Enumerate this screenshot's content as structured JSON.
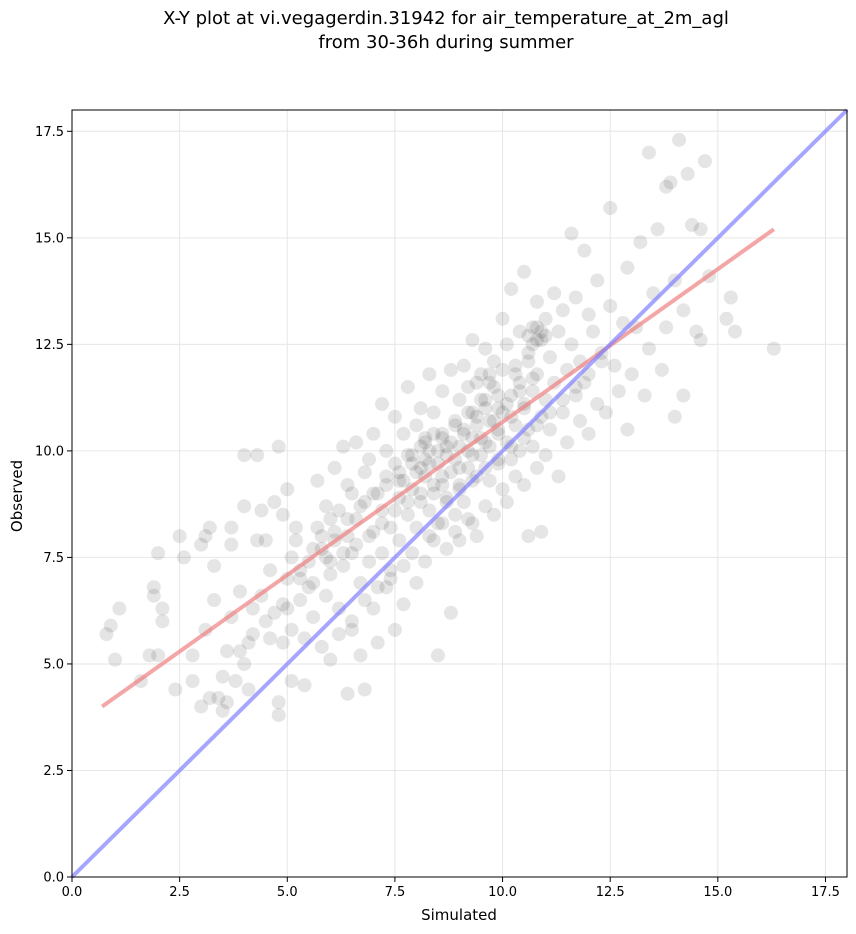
{
  "chart_data": {
    "type": "scatter",
    "title_lines": [
      "X-Y plot at vi.vegagerdin.31942 for air_temperature_at_2m_agl",
      "from 30-36h during summer"
    ],
    "xlabel": "Simulated",
    "ylabel": "Observed",
    "xlim": [
      0,
      18
    ],
    "ylim": [
      0,
      18
    ],
    "xticks": [
      "0.0",
      "2.5",
      "5.0",
      "7.5",
      "10.0",
      "12.5",
      "15.0",
      "17.5"
    ],
    "yticks": [
      "0.0",
      "2.5",
      "5.0",
      "7.5",
      "10.0",
      "12.5",
      "15.0",
      "17.5"
    ],
    "grid": true,
    "point_color": "#000000",
    "point_alpha": 0.1,
    "regression_line": {
      "color": "#f08080",
      "x": [
        0.7,
        16.3
      ],
      "y": [
        4.0,
        15.2
      ]
    },
    "identity_line": {
      "color": "#8080ff",
      "x": [
        0,
        18
      ],
      "y": [
        0,
        18
      ]
    },
    "points": [
      [
        0.8,
        5.7
      ],
      [
        0.9,
        5.9
      ],
      [
        1.0,
        5.1
      ],
      [
        1.1,
        6.3
      ],
      [
        1.6,
        4.6
      ],
      [
        1.8,
        5.2
      ],
      [
        1.9,
        6.8
      ],
      [
        1.9,
        6.6
      ],
      [
        2.0,
        7.6
      ],
      [
        2.1,
        6.3
      ],
      [
        2.1,
        6.0
      ],
      [
        2.0,
        5.2
      ],
      [
        2.4,
        4.4
      ],
      [
        2.5,
        8.0
      ],
      [
        2.6,
        7.5
      ],
      [
        2.8,
        4.6
      ],
      [
        2.8,
        5.2
      ],
      [
        3.0,
        4.0
      ],
      [
        3.0,
        7.8
      ],
      [
        3.1,
        8.0
      ],
      [
        3.1,
        5.8
      ],
      [
        3.2,
        8.2
      ],
      [
        3.2,
        4.2
      ],
      [
        3.3,
        7.3
      ],
      [
        3.3,
        6.5
      ],
      [
        3.4,
        4.2
      ],
      [
        3.5,
        3.9
      ],
      [
        3.6,
        4.1
      ],
      [
        3.6,
        5.3
      ],
      [
        3.7,
        6.1
      ],
      [
        3.7,
        8.2
      ],
      [
        3.7,
        7.8
      ],
      [
        3.8,
        4.6
      ],
      [
        3.9,
        6.7
      ],
      [
        4.0,
        9.9
      ],
      [
        4.0,
        8.7
      ],
      [
        4.0,
        5.0
      ],
      [
        4.1,
        5.5
      ],
      [
        4.1,
        4.4
      ],
      [
        4.2,
        6.3
      ],
      [
        4.3,
        9.9
      ],
      [
        4.3,
        7.9
      ],
      [
        4.4,
        6.6
      ],
      [
        4.4,
        8.6
      ],
      [
        4.5,
        7.9
      ],
      [
        4.6,
        5.6
      ],
      [
        4.6,
        7.2
      ],
      [
        4.7,
        6.2
      ],
      [
        4.7,
        8.8
      ],
      [
        4.8,
        4.1
      ],
      [
        4.8,
        3.8
      ],
      [
        4.8,
        10.1
      ],
      [
        4.9,
        5.5
      ],
      [
        4.9,
        8.5
      ],
      [
        5.0,
        9.1
      ],
      [
        5.0,
        7.0
      ],
      [
        5.0,
        6.3
      ],
      [
        5.1,
        4.6
      ],
      [
        5.1,
        5.8
      ],
      [
        5.1,
        7.5
      ],
      [
        5.2,
        8.2
      ],
      [
        5.2,
        7.9
      ],
      [
        5.3,
        6.5
      ],
      [
        5.3,
        7.2
      ],
      [
        5.4,
        5.6
      ],
      [
        5.4,
        4.5
      ],
      [
        5.5,
        7.4
      ],
      [
        5.5,
        6.8
      ],
      [
        5.6,
        6.1
      ],
      [
        5.6,
        7.7
      ],
      [
        5.7,
        8.2
      ],
      [
        5.7,
        9.3
      ],
      [
        5.8,
        5.4
      ],
      [
        5.8,
        8.0
      ],
      [
        5.9,
        7.5
      ],
      [
        5.9,
        8.7
      ],
      [
        6.0,
        7.1
      ],
      [
        6.0,
        5.1
      ],
      [
        6.0,
        8.4
      ],
      [
        6.1,
        9.6
      ],
      [
        6.1,
        7.9
      ],
      [
        6.2,
        6.3
      ],
      [
        6.2,
        8.6
      ],
      [
        6.3,
        10.1
      ],
      [
        6.3,
        7.3
      ],
      [
        6.4,
        9.2
      ],
      [
        6.4,
        4.3
      ],
      [
        6.4,
        8.0
      ],
      [
        6.5,
        5.8
      ],
      [
        6.5,
        7.6
      ],
      [
        6.5,
        9.0
      ],
      [
        6.6,
        10.2
      ],
      [
        6.6,
        8.4
      ],
      [
        6.7,
        6.9
      ],
      [
        6.7,
        5.2
      ],
      [
        6.8,
        8.8
      ],
      [
        6.8,
        9.5
      ],
      [
        6.8,
        4.4
      ],
      [
        6.9,
        7.4
      ],
      [
        6.9,
        9.8
      ],
      [
        7.0,
        8.1
      ],
      [
        7.0,
        6.3
      ],
      [
        7.0,
        10.4
      ],
      [
        7.1,
        5.5
      ],
      [
        7.1,
        9.0
      ],
      [
        7.2,
        7.6
      ],
      [
        7.2,
        11.1
      ],
      [
        7.2,
        8.6
      ],
      [
        7.3,
        9.4
      ],
      [
        7.3,
        6.8
      ],
      [
        7.3,
        10.0
      ],
      [
        7.4,
        8.2
      ],
      [
        7.4,
        7.2
      ],
      [
        7.5,
        9.7
      ],
      [
        7.5,
        10.8
      ],
      [
        7.5,
        5.8
      ],
      [
        7.6,
        8.9
      ],
      [
        7.6,
        7.9
      ],
      [
        7.6,
        9.3
      ],
      [
        7.7,
        10.4
      ],
      [
        7.7,
        6.4
      ],
      [
        7.8,
        8.5
      ],
      [
        7.8,
        11.5
      ],
      [
        7.8,
        9.9
      ],
      [
        7.9,
        7.6
      ],
      [
        7.9,
        9.1
      ],
      [
        8.0,
        10.6
      ],
      [
        8.0,
        8.2
      ],
      [
        8.0,
        6.9
      ],
      [
        8.1,
        9.6
      ],
      [
        8.1,
        11.0
      ],
      [
        8.1,
        8.8
      ],
      [
        8.2,
        10.2
      ],
      [
        8.2,
        7.4
      ],
      [
        8.2,
        9.4
      ],
      [
        8.3,
        11.8
      ],
      [
        8.3,
        8.6
      ],
      [
        8.3,
        10.0
      ],
      [
        8.4,
        9.0
      ],
      [
        8.4,
        7.9
      ],
      [
        8.4,
        10.9
      ],
      [
        8.5,
        9.7
      ],
      [
        8.5,
        8.3
      ],
      [
        8.5,
        5.2
      ],
      [
        8.6,
        10.4
      ],
      [
        8.6,
        11.4
      ],
      [
        8.6,
        9.2
      ],
      [
        8.7,
        7.7
      ],
      [
        8.7,
        10.1
      ],
      [
        8.7,
        8.8
      ],
      [
        8.8,
        9.5
      ],
      [
        8.8,
        11.9
      ],
      [
        8.8,
        6.2
      ],
      [
        8.9,
        10.7
      ],
      [
        8.9,
        8.5
      ],
      [
        8.9,
        9.8
      ],
      [
        9.0,
        11.2
      ],
      [
        9.0,
        9.1
      ],
      [
        9.0,
        7.9
      ],
      [
        9.1,
        10.4
      ],
      [
        9.1,
        12.0
      ],
      [
        9.1,
        8.8
      ],
      [
        9.2,
        9.6
      ],
      [
        9.2,
        11.5
      ],
      [
        9.2,
        10.0
      ],
      [
        9.3,
        8.3
      ],
      [
        9.3,
        10.9
      ],
      [
        9.3,
        12.6
      ],
      [
        9.4,
        9.4
      ],
      [
        9.4,
        10.6
      ],
      [
        9.4,
        8.0
      ],
      [
        9.5,
        11.8
      ],
      [
        9.5,
        9.9
      ],
      [
        9.5,
        10.3
      ],
      [
        9.6,
        8.7
      ],
      [
        9.6,
        11.2
      ],
      [
        9.6,
        12.4
      ],
      [
        9.7,
        10.1
      ],
      [
        9.7,
        9.3
      ],
      [
        9.7,
        11.6
      ],
      [
        9.8,
        10.7
      ],
      [
        9.8,
        8.5
      ],
      [
        9.8,
        12.1
      ],
      [
        9.9,
        9.7
      ],
      [
        9.9,
        11.0
      ],
      [
        9.9,
        10.4
      ],
      [
        10.0,
        13.1
      ],
      [
        10.0,
        9.1
      ],
      [
        10.0,
        11.9
      ],
      [
        10.1,
        10.2
      ],
      [
        10.1,
        8.8
      ],
      [
        10.1,
        12.5
      ],
      [
        10.2,
        11.3
      ],
      [
        10.2,
        9.8
      ],
      [
        10.2,
        13.8
      ],
      [
        10.3,
        10.6
      ],
      [
        10.3,
        12.0
      ],
      [
        10.3,
        9.4
      ],
      [
        10.4,
        11.6
      ],
      [
        10.4,
        10.0
      ],
      [
        10.4,
        12.8
      ],
      [
        10.5,
        11.0
      ],
      [
        10.5,
        14.2
      ],
      [
        10.5,
        9.2
      ],
      [
        10.6,
        12.3
      ],
      [
        10.6,
        10.5
      ],
      [
        10.6,
        8.0
      ],
      [
        10.7,
        11.4
      ],
      [
        10.7,
        12.9
      ],
      [
        10.7,
        10.1
      ],
      [
        10.8,
        13.5
      ],
      [
        10.8,
        11.8
      ],
      [
        10.8,
        9.6
      ],
      [
        10.9,
        12.6
      ],
      [
        10.9,
        10.8
      ],
      [
        10.9,
        8.1
      ],
      [
        11.0,
        11.2
      ],
      [
        11.0,
        13.1
      ],
      [
        11.0,
        9.9
      ],
      [
        11.1,
        12.2
      ],
      [
        11.1,
        10.5
      ],
      [
        11.2,
        13.7
      ],
      [
        11.2,
        11.6
      ],
      [
        11.3,
        9.4
      ],
      [
        11.3,
        12.8
      ],
      [
        11.4,
        10.9
      ],
      [
        11.4,
        13.3
      ],
      [
        11.5,
        11.9
      ],
      [
        11.5,
        10.2
      ],
      [
        11.6,
        12.5
      ],
      [
        11.6,
        15.1
      ],
      [
        11.7,
        11.3
      ],
      [
        11.7,
        13.6
      ],
      [
        11.8,
        10.7
      ],
      [
        11.8,
        12.1
      ],
      [
        11.9,
        14.7
      ],
      [
        11.9,
        11.6
      ],
      [
        12.0,
        13.2
      ],
      [
        12.0,
        10.4
      ],
      [
        12.1,
        12.8
      ],
      [
        12.2,
        11.1
      ],
      [
        12.2,
        14.0
      ],
      [
        12.3,
        12.3
      ],
      [
        12.4,
        10.9
      ],
      [
        12.5,
        13.4
      ],
      [
        12.5,
        15.7
      ],
      [
        12.6,
        12.0
      ],
      [
        12.7,
        11.4
      ],
      [
        12.8,
        13.0
      ],
      [
        12.9,
        14.3
      ],
      [
        12.9,
        10.5
      ],
      [
        13.0,
        11.8
      ],
      [
        13.1,
        12.9
      ],
      [
        13.2,
        14.9
      ],
      [
        13.3,
        11.3
      ],
      [
        13.4,
        12.4
      ],
      [
        13.4,
        17.0
      ],
      [
        13.5,
        13.7
      ],
      [
        13.6,
        15.2
      ],
      [
        13.7,
        11.9
      ],
      [
        13.8,
        16.2
      ],
      [
        13.8,
        12.9
      ],
      [
        13.9,
        16.3
      ],
      [
        14.0,
        10.8
      ],
      [
        14.0,
        14.0
      ],
      [
        14.1,
        17.3
      ],
      [
        14.2,
        13.3
      ],
      [
        14.2,
        11.3
      ],
      [
        14.3,
        16.5
      ],
      [
        14.4,
        15.3
      ],
      [
        14.5,
        12.8
      ],
      [
        14.6,
        15.2
      ],
      [
        14.6,
        12.6
      ],
      [
        14.7,
        16.8
      ],
      [
        14.8,
        14.1
      ],
      [
        15.2,
        13.1
      ],
      [
        15.3,
        13.6
      ],
      [
        15.4,
        12.8
      ],
      [
        16.3,
        12.4
      ],
      [
        8.2,
        9.8
      ],
      [
        8.5,
        10.0
      ],
      [
        8.8,
        10.2
      ],
      [
        9.1,
        10.5
      ],
      [
        9.4,
        10.8
      ],
      [
        9.6,
        11.0
      ],
      [
        9.9,
        11.3
      ],
      [
        8.0,
        9.5
      ],
      [
        8.3,
        9.7
      ],
      [
        8.6,
        10.3
      ],
      [
        8.9,
        10.6
      ],
      [
        9.2,
        10.9
      ],
      [
        9.5,
        11.2
      ],
      [
        9.8,
        11.5
      ],
      [
        10.1,
        11.1
      ],
      [
        10.4,
        11.4
      ],
      [
        10.7,
        11.7
      ],
      [
        7.7,
        9.3
      ],
      [
        8.1,
        10.1
      ],
      [
        8.4,
        10.4
      ],
      [
        8.7,
        9.9
      ],
      [
        9.0,
        10.1
      ],
      [
        9.3,
        10.3
      ],
      [
        9.7,
        10.7
      ],
      [
        10.0,
        10.9
      ],
      [
        10.3,
        11.8
      ],
      [
        10.6,
        12.1
      ],
      [
        7.9,
        9.9
      ],
      [
        8.2,
        10.3
      ],
      [
        8.6,
        9.4
      ],
      [
        9.0,
        9.6
      ],
      [
        9.3,
        9.9
      ],
      [
        9.6,
        10.2
      ],
      [
        9.9,
        10.5
      ],
      [
        10.2,
        10.8
      ],
      [
        10.5,
        11.1
      ],
      [
        10.8,
        12.6
      ],
      [
        10.9,
        12.8
      ],
      [
        11.0,
        12.7
      ],
      [
        10.7,
        12.5
      ],
      [
        10.8,
        12.9
      ],
      [
        10.6,
        12.7
      ],
      [
        9.4,
        11.6
      ],
      [
        9.7,
        11.8
      ],
      [
        8.4,
        9.2
      ],
      [
        8.1,
        9.0
      ],
      [
        7.8,
        8.8
      ],
      [
        7.5,
        8.6
      ],
      [
        7.2,
        8.3
      ],
      [
        6.9,
        8.0
      ],
      [
        6.6,
        7.8
      ],
      [
        6.3,
        7.6
      ],
      [
        6.0,
        7.4
      ],
      [
        5.8,
        7.7
      ],
      [
        6.1,
        8.1
      ],
      [
        6.4,
        8.4
      ],
      [
        6.7,
        8.7
      ],
      [
        7.0,
        9.0
      ],
      [
        7.3,
        9.2
      ],
      [
        7.6,
        9.5
      ],
      [
        7.9,
        9.7
      ],
      [
        8.7,
        8.9
      ],
      [
        9.0,
        9.2
      ],
      [
        9.3,
        9.3
      ],
      [
        9.6,
        9.6
      ],
      [
        9.9,
        9.8
      ],
      [
        10.2,
        10.1
      ],
      [
        10.5,
        10.3
      ],
      [
        10.8,
        10.6
      ],
      [
        11.1,
        10.9
      ],
      [
        11.4,
        11.2
      ],
      [
        11.7,
        11.5
      ],
      [
        12.0,
        11.8
      ],
      [
        12.3,
        12.1
      ],
      [
        8.3,
        8.0
      ],
      [
        8.6,
        8.3
      ],
      [
        8.9,
        8.1
      ],
      [
        9.2,
        8.4
      ],
      [
        7.4,
        7.0
      ],
      [
        7.7,
        7.3
      ],
      [
        6.8,
        6.5
      ],
      [
        7.1,
        6.8
      ],
      [
        6.5,
        6.0
      ],
      [
        6.2,
        5.7
      ],
      [
        5.9,
        6.6
      ],
      [
        5.6,
        6.9
      ],
      [
        5.3,
        7.0
      ],
      [
        4.9,
        6.4
      ],
      [
        4.5,
        6.0
      ],
      [
        4.2,
        5.7
      ],
      [
        3.9,
        5.3
      ],
      [
        3.5,
        4.7
      ]
    ]
  }
}
